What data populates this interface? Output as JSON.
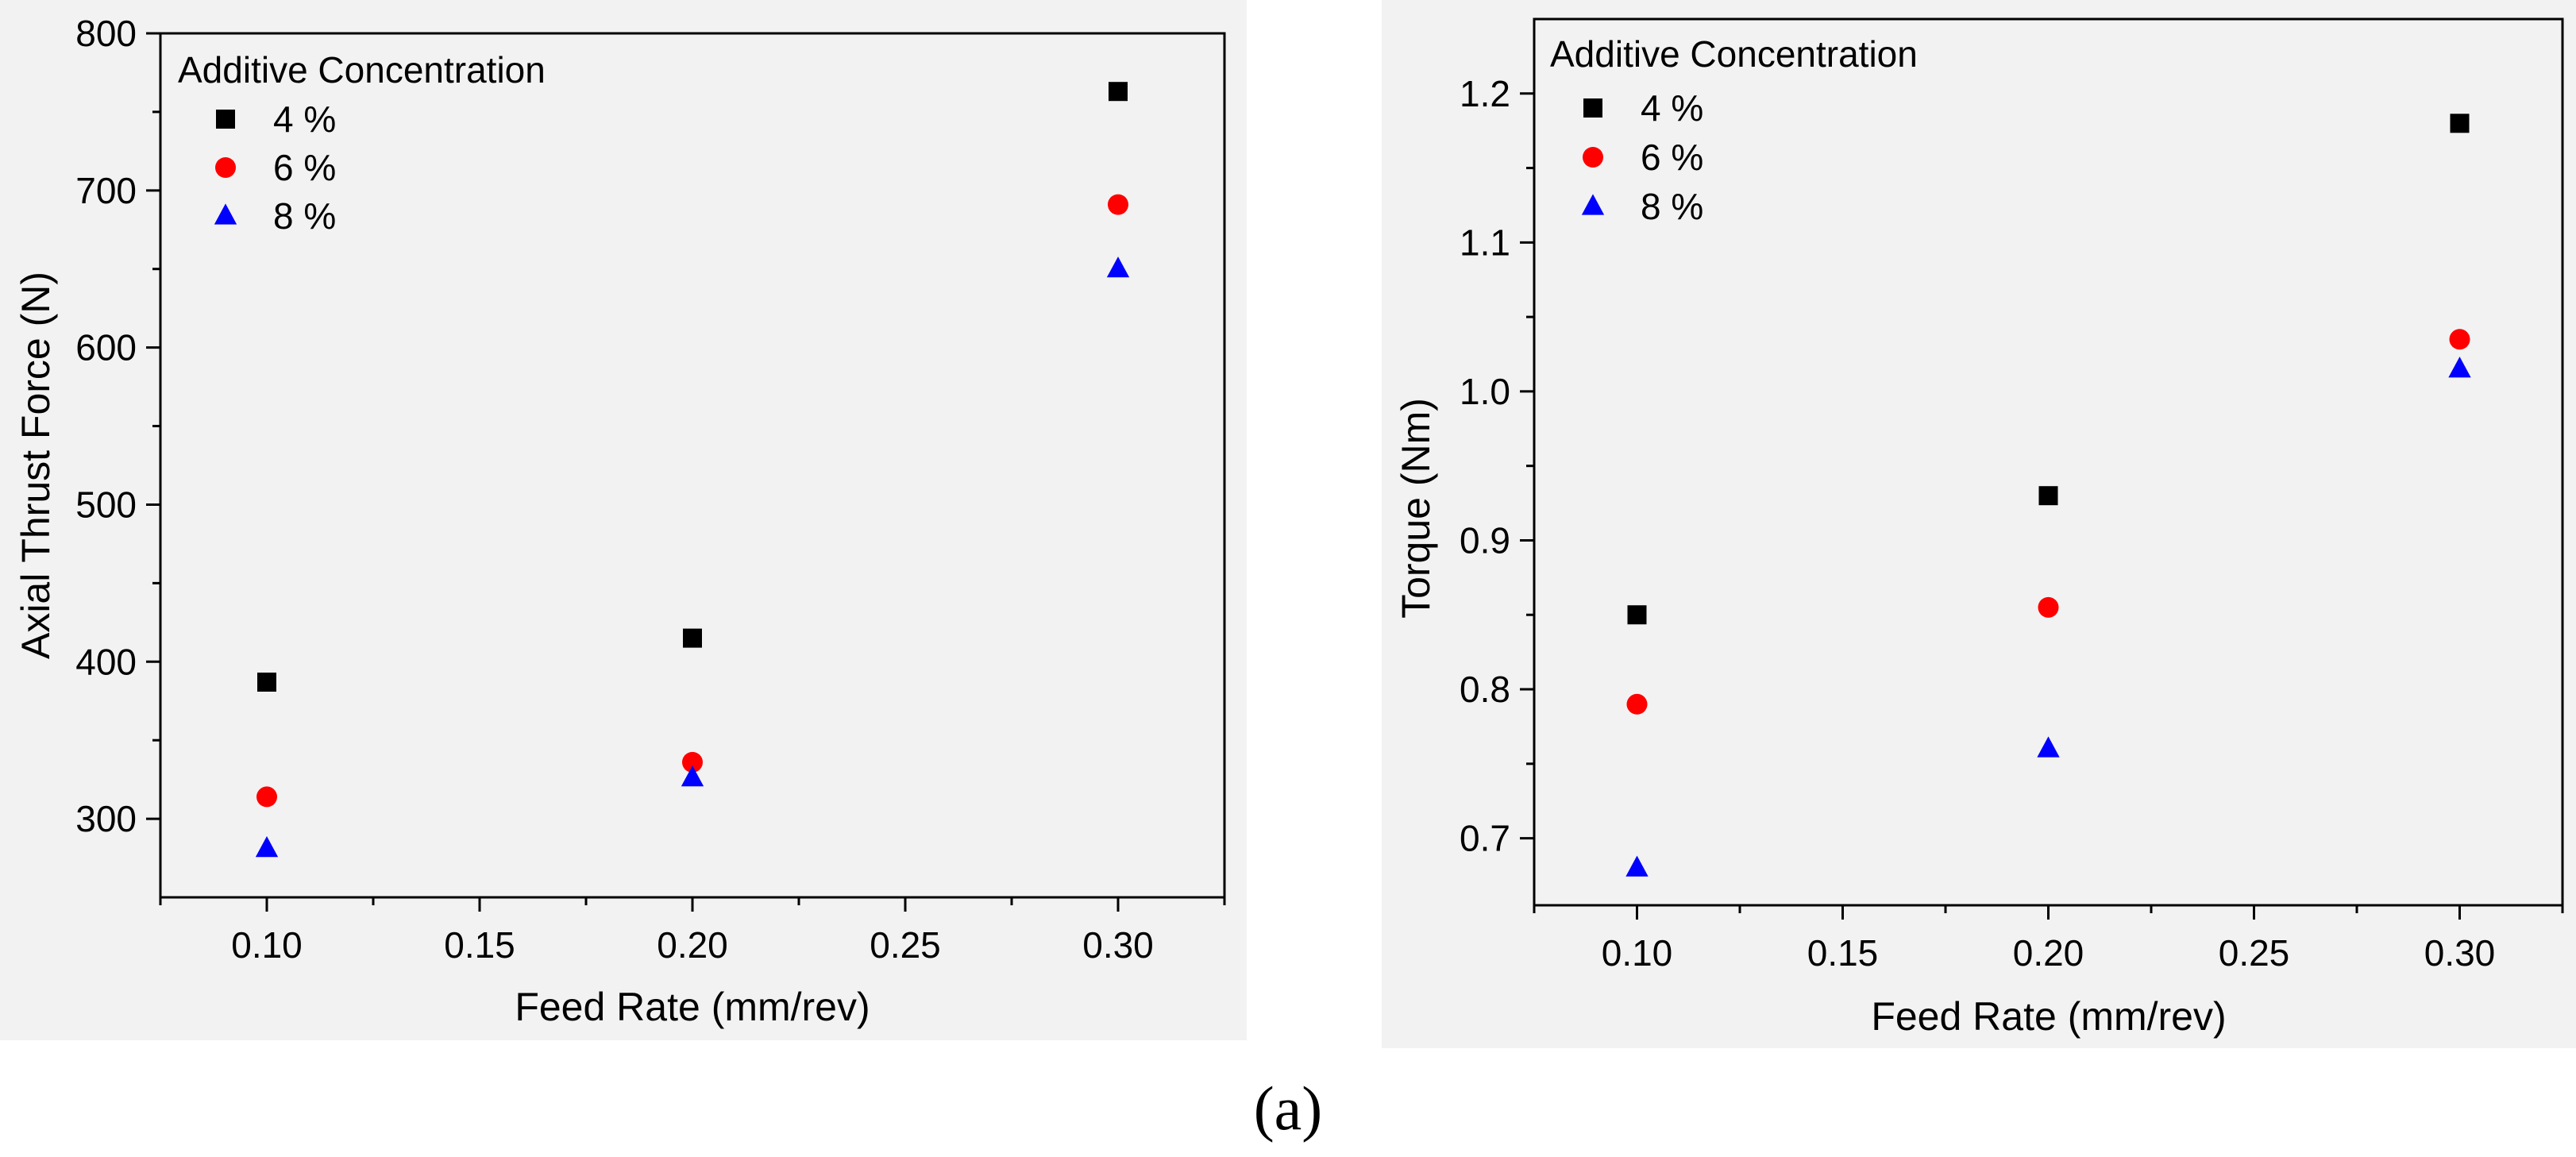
{
  "chart_data": [
    {
      "type": "scatter",
      "title": "",
      "xlabel": "Feed Rate (mm/rev)",
      "ylabel": "Axial Thrust Force (N)",
      "xlim": [
        0.075,
        0.325
      ],
      "ylim": [
        250,
        800
      ],
      "xticks": [
        0.1,
        0.15,
        0.2,
        0.25,
        0.3
      ],
      "xtick_labels": [
        "0.10",
        "0.15",
        "0.20",
        "0.25",
        "0.30"
      ],
      "yticks": [
        300,
        400,
        500,
        600,
        700,
        800
      ],
      "ytick_labels": [
        "300",
        "400",
        "500",
        "600",
        "700",
        "800"
      ],
      "legend": {
        "title": "Additive Concentration",
        "position": "top-left"
      },
      "x": [
        0.1,
        0.2,
        0.3
      ],
      "series": [
        {
          "name": "4 %",
          "marker": "square",
          "color": "#000000",
          "values": [
            387,
            415,
            763
          ]
        },
        {
          "name": "6 %",
          "marker": "circle",
          "color": "#ff0000",
          "values": [
            314,
            336,
            691
          ]
        },
        {
          "name": "8 %",
          "marker": "triangle",
          "color": "#0000ff",
          "values": [
            281,
            326,
            650
          ]
        }
      ]
    },
    {
      "type": "scatter",
      "title": "",
      "xlabel": "Feed Rate (mm/rev)",
      "ylabel": "Torque (Nm)",
      "xlim": [
        0.075,
        0.325
      ],
      "ylim": [
        0.655,
        1.25
      ],
      "xticks": [
        0.1,
        0.15,
        0.2,
        0.25,
        0.3
      ],
      "xtick_labels": [
        "0.10",
        "0.15",
        "0.20",
        "0.25",
        "0.30"
      ],
      "yticks": [
        0.7,
        0.8,
        0.9,
        1.0,
        1.1,
        1.2
      ],
      "ytick_labels": [
        "0.7",
        "0.8",
        "0.9",
        "1.0",
        "1.1",
        "1.2"
      ],
      "legend": {
        "title": "Additive Concentration",
        "position": "top-left"
      },
      "x": [
        0.1,
        0.2,
        0.3
      ],
      "series": [
        {
          "name": "4 %",
          "marker": "square",
          "color": "#000000",
          "values": [
            0.85,
            0.93,
            1.18
          ]
        },
        {
          "name": "6 %",
          "marker": "circle",
          "color": "#ff0000",
          "values": [
            0.79,
            0.855,
            1.035
          ]
        },
        {
          "name": "8 %",
          "marker": "triangle",
          "color": "#0000ff",
          "values": [
            0.68,
            0.76,
            1.015
          ]
        }
      ]
    }
  ],
  "caption": "(a)"
}
